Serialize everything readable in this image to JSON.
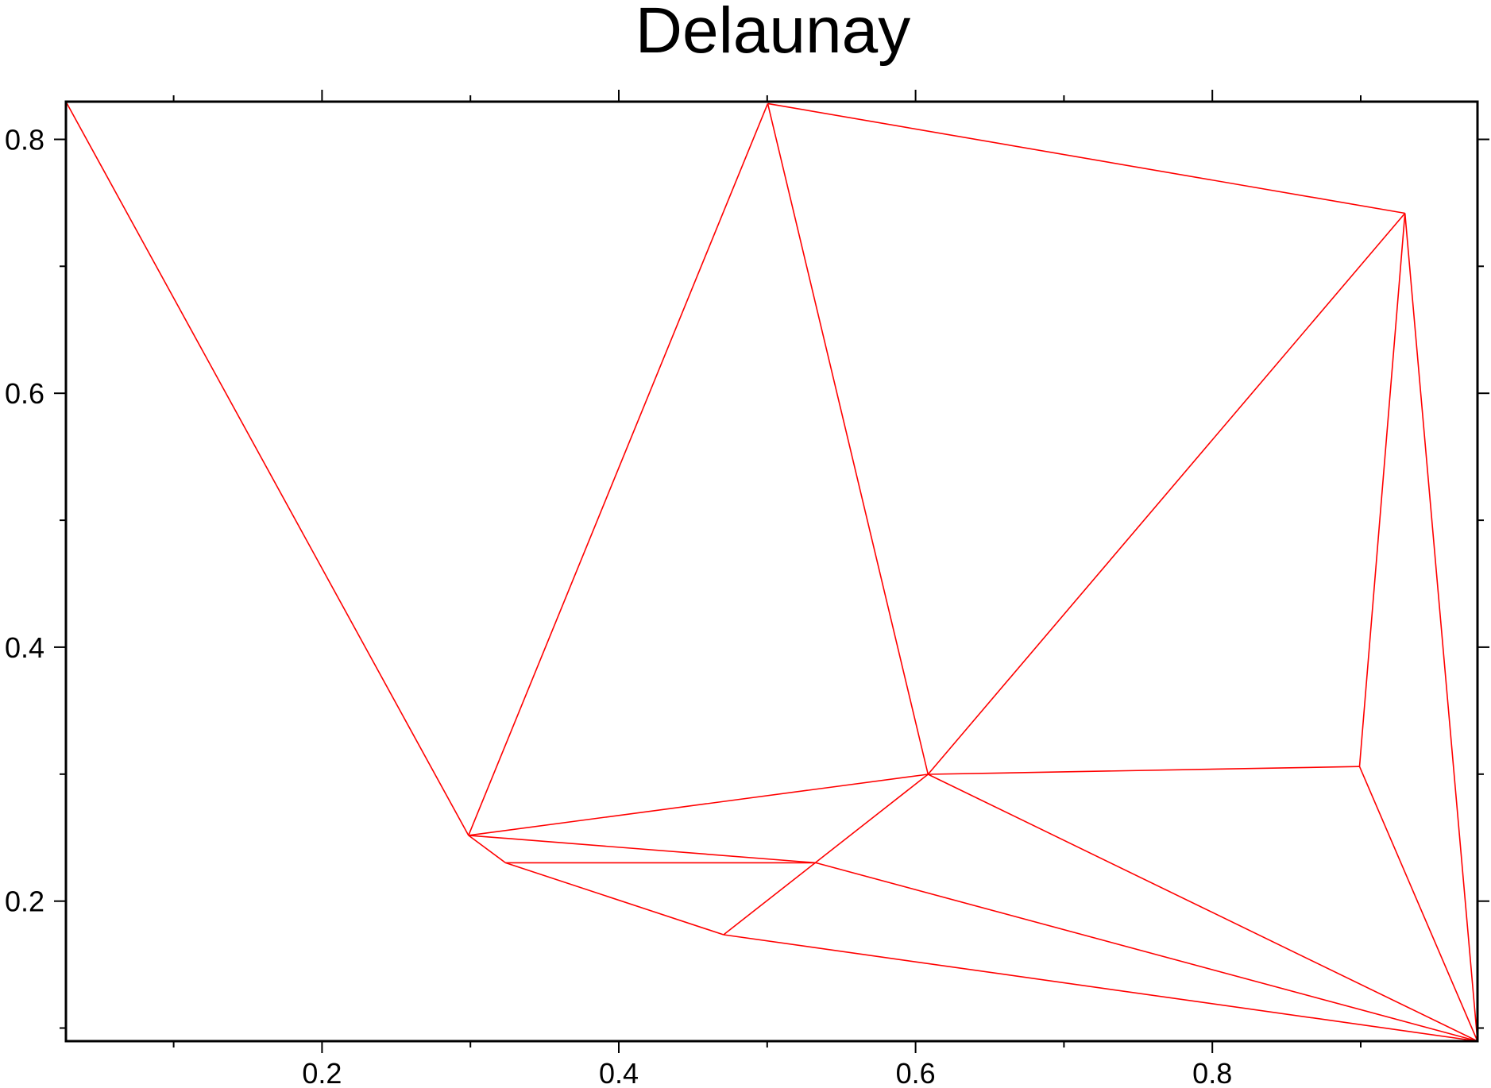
{
  "chart_data": {
    "type": "network",
    "title": "Delaunay",
    "xlabel": "",
    "ylabel": "",
    "xlim": [
      0.0274,
      0.9787
    ],
    "ylim": [
      0.0897,
      0.8297
    ],
    "x_ticks": [
      0.2,
      0.4,
      0.6,
      0.8
    ],
    "x_tick_labels": [
      "0.2",
      "0.4",
      "0.6",
      "0.8"
    ],
    "x_minor_ticks": [
      0.1,
      0.3,
      0.5,
      0.7,
      0.9
    ],
    "y_ticks": [
      0.2,
      0.4,
      0.6,
      0.8
    ],
    "y_tick_labels": [
      "0.2",
      "0.4",
      "0.6",
      "0.8"
    ],
    "y_minor_ticks": [
      0.1,
      0.3,
      0.5,
      0.7
    ],
    "grid": false,
    "edge_color": "#ff0000",
    "nodes": [
      {
        "id": 0,
        "x": 0.0274,
        "y": 0.8297
      },
      {
        "id": 1,
        "x": 0.5004,
        "y": 0.8282
      },
      {
        "id": 2,
        "x": 0.9298,
        "y": 0.7418
      },
      {
        "id": 3,
        "x": 0.2987,
        "y": 0.2518
      },
      {
        "id": 4,
        "x": 0.3236,
        "y": 0.2302
      },
      {
        "id": 5,
        "x": 0.5327,
        "y": 0.2302
      },
      {
        "id": 6,
        "x": 0.4706,
        "y": 0.1735
      },
      {
        "id": 7,
        "x": 0.6084,
        "y": 0.2999
      },
      {
        "id": 8,
        "x": 0.8992,
        "y": 0.306
      },
      {
        "id": 9,
        "x": 0.9787,
        "y": 0.0897
      }
    ],
    "edges": [
      [
        0,
        3
      ],
      [
        3,
        1
      ],
      [
        1,
        7
      ],
      [
        1,
        2
      ],
      [
        2,
        7
      ],
      [
        2,
        9
      ],
      [
        2,
        8
      ],
      [
        3,
        7
      ],
      [
        3,
        5
      ],
      [
        3,
        4
      ],
      [
        4,
        5
      ],
      [
        4,
        6
      ],
      [
        6,
        7
      ],
      [
        6,
        9
      ],
      [
        5,
        9
      ],
      [
        7,
        8
      ],
      [
        7,
        9
      ],
      [
        8,
        9
      ]
    ]
  }
}
